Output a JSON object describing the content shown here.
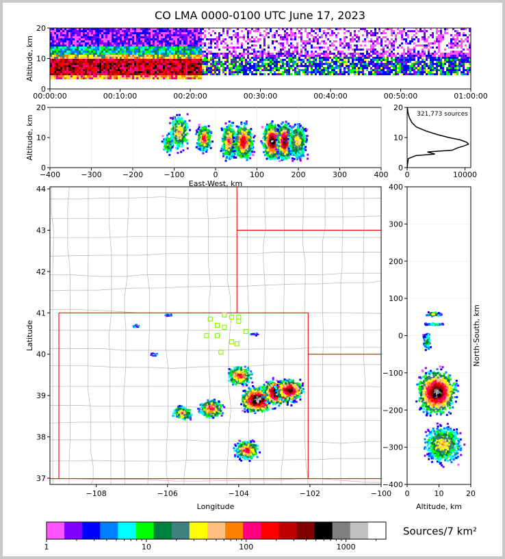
{
  "title": "CO LMA 0000-0100 UTC June 17, 2023",
  "colors": {
    "bin_colors": [
      "#ff55ff",
      "#8000ff",
      "#0000ff",
      "#0080ff",
      "#00ffff",
      "#00ff00",
      "#008040",
      "#408080",
      "#ffff00",
      "#ffc080",
      "#ff8000",
      "#ff0080",
      "#ff0000",
      "#c00000",
      "#800000",
      "#000000",
      "#808080",
      "#c0c0c0",
      "#ffffff"
    ],
    "state_border": "#ff0000",
    "county_line": "#b4b4b4"
  },
  "chart_data": [
    {
      "id": "time_height",
      "type": "heatmap",
      "ylabel": "Altitude, km",
      "ylim": [
        0,
        20
      ],
      "yticks": [
        "0",
        "10",
        "20"
      ],
      "xlim": [
        "00:00:00",
        "01:00:00"
      ],
      "xticks": [
        "00:00:00",
        "00:10:00",
        "00:20:00",
        "00:30:00",
        "00:40:00",
        "00:50:00",
        "01:00:00"
      ],
      "description_values": {
        "dense_activity_until_min": 21.5,
        "core_altitude_km": [
          4,
          12
        ]
      }
    },
    {
      "id": "ew_height",
      "type": "heatmap",
      "xlabel": "East-West, km",
      "ylabel": "Altitude, km",
      "xlim": [
        -400,
        400
      ],
      "xticks": [
        "−400",
        "−300",
        "−200",
        "−100",
        "0",
        "100",
        "200",
        "300",
        "400"
      ],
      "ylim": [
        0,
        20
      ],
      "yticks": [
        "0",
        "10",
        "20"
      ]
    },
    {
      "id": "altitude_histogram",
      "type": "line",
      "annotation": "321,773 sources",
      "xlim": [
        0,
        11000
      ],
      "xticks": [
        "0",
        "10000"
      ],
      "ylim": [
        0,
        20
      ],
      "yticks": [
        "0",
        "10",
        "20"
      ],
      "profile": [
        [
          0,
          0
        ],
        [
          5,
          0
        ],
        [
          200,
          3
        ],
        [
          1500,
          4
        ],
        [
          4800,
          4.5
        ],
        [
          3500,
          5.2
        ],
        [
          7800,
          5.8
        ],
        [
          8600,
          6.5
        ],
        [
          9800,
          7.2
        ],
        [
          10600,
          7.8
        ],
        [
          10300,
          8.4
        ],
        [
          9200,
          9.2
        ],
        [
          7200,
          10
        ],
        [
          5200,
          11
        ],
        [
          3200,
          12.2
        ],
        [
          1600,
          13.5
        ],
        [
          800,
          15
        ],
        [
          400,
          16.5
        ],
        [
          150,
          18
        ],
        [
          30,
          20
        ]
      ]
    },
    {
      "id": "plan_view",
      "type": "heatmap",
      "xlabel": "Longitude",
      "ylabel": "Latitude",
      "xlim": [
        -109.3,
        -100.0
      ],
      "xticks": [
        "−108",
        "−106",
        "−104",
        "−102",
        "−100"
      ],
      "ylim": [
        36.85,
        44.05
      ],
      "yticks": [
        "37",
        "38",
        "39",
        "40",
        "41",
        "42",
        "43",
        "44"
      ],
      "stations": [
        [
          -104.4,
          40.95
        ],
        [
          -104.2,
          40.9
        ],
        [
          -104.0,
          40.9
        ],
        [
          -104.8,
          40.85
        ],
        [
          -104.0,
          40.8
        ],
        [
          -104.6,
          40.7
        ],
        [
          -104.4,
          40.65
        ],
        [
          -103.8,
          40.55
        ],
        [
          -104.9,
          40.45
        ],
        [
          -104.6,
          40.45
        ],
        [
          -104.2,
          40.3
        ],
        [
          -104.05,
          40.25
        ],
        [
          -104.5,
          40.05
        ]
      ],
      "storms": [
        {
          "lon": -103.5,
          "lat": 38.92,
          "intensity": 3
        },
        {
          "lon": -102.9,
          "lat": 39.1,
          "intensity": 3
        },
        {
          "lon": -102.6,
          "lat": 39.15,
          "intensity": 2
        },
        {
          "lon": -103.8,
          "lat": 37.7,
          "intensity": 1
        },
        {
          "lon": -104.8,
          "lat": 38.7,
          "intensity": 1
        },
        {
          "lon": -105.6,
          "lat": 38.6,
          "intensity": 0
        },
        {
          "lon": -104.0,
          "lat": 39.5,
          "intensity": 1
        }
      ]
    },
    {
      "id": "ns_height",
      "type": "heatmap",
      "xlabel": "Altitude, km",
      "ylabel": "North-South, km",
      "xlim": [
        0,
        20
      ],
      "xticks": [
        "0",
        "10",
        "20"
      ],
      "ylim": [
        -400,
        400
      ],
      "yticks": [
        "−400",
        "−300",
        "−200",
        "−100",
        "0",
        "100",
        "200",
        "300",
        "400"
      ]
    }
  ],
  "colorbar": {
    "label": "Sources/7 km²",
    "ticks": [
      "1",
      "10",
      "100",
      "1000"
    ]
  }
}
